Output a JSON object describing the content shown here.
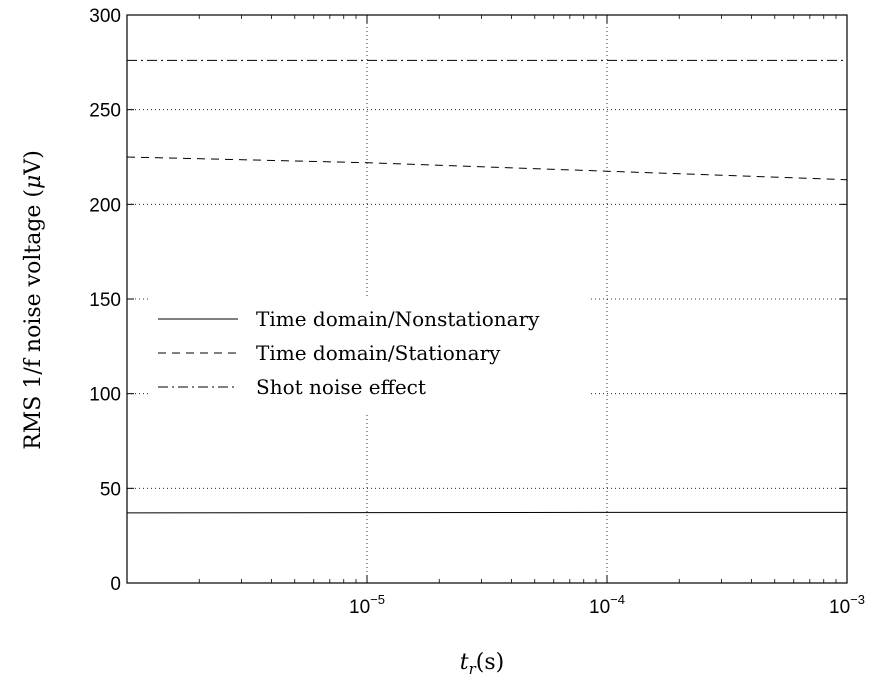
{
  "chart_data": {
    "type": "line",
    "xscale": "log",
    "xlim": [
      1e-06,
      0.001
    ],
    "ylim": [
      0,
      300
    ],
    "xlabel": "t_r(s)",
    "ylabel": "RMS 1/f noise voltage (μV)",
    "x_ticks": [
      {
        "value": 1e-05,
        "base": "10",
        "exp": "−5"
      },
      {
        "value": 0.0001,
        "base": "10",
        "exp": "−4"
      },
      {
        "value": 0.001,
        "base": "10",
        "exp": "−3"
      }
    ],
    "y_ticks": [
      0,
      50,
      100,
      150,
      200,
      250,
      300
    ],
    "grid": true,
    "legend_position": "center-left",
    "series": [
      {
        "name": "Time domain/Nonstationary",
        "style": "solid",
        "x": [
          1e-06,
          1e-05,
          0.0001,
          0.001
        ],
        "y": [
          37,
          37.2,
          37.3,
          37.3
        ]
      },
      {
        "name": "Time domain/Stationary",
        "style": "dashed",
        "x": [
          1e-06,
          1e-05,
          0.0001,
          0.001
        ],
        "y": [
          225,
          222,
          217.5,
          213
        ]
      },
      {
        "name": "Shot noise effect",
        "style": "dashdot",
        "x": [
          1e-06,
          1e-05,
          0.0001,
          0.001
        ],
        "y": [
          276,
          276,
          276,
          276
        ]
      }
    ]
  }
}
